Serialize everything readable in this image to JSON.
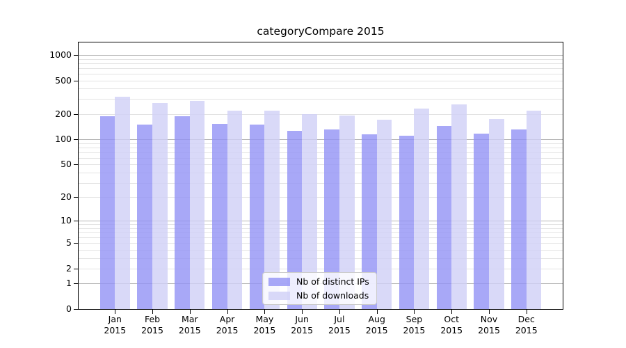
{
  "chart_data": {
    "type": "bar",
    "title": "categoryCompare 2015",
    "year": "2015",
    "categories": [
      "Jan",
      "Feb",
      "Mar",
      "Apr",
      "May",
      "Jun",
      "Jul",
      "Aug",
      "Sep",
      "Oct",
      "Nov",
      "Dec"
    ],
    "x_tick_labels": [
      "Jan 2015",
      "Feb 2015",
      "Mar 2015",
      "Apr 2015",
      "May 2015",
      "Jun 2015",
      "Jul 2015",
      "Aug 2015",
      "Sep 2015",
      "Oct 2015",
      "Nov 2015",
      "Dec 2015"
    ],
    "series": [
      {
        "name": "Nb of distinct IPs",
        "color": "rgba(146,146,245,0.8)",
        "values": [
          190,
          150,
          190,
          153,
          150,
          125,
          130,
          115,
          110,
          145,
          118,
          130
        ]
      },
      {
        "name": "Nb of downloads",
        "color": "rgba(207,207,246,0.8)",
        "values": [
          320,
          270,
          286,
          220,
          220,
          200,
          193,
          170,
          233,
          262,
          175,
          220
        ]
      }
    ],
    "xlabel": "",
    "ylabel": "",
    "yscale": "log1p",
    "yticks": [
      0,
      1,
      2,
      5,
      10,
      20,
      50,
      100,
      200,
      500,
      1000
    ],
    "ylim": [
      0,
      1400
    ],
    "grid": true,
    "legend_position": "lower center",
    "colors": {
      "grid_minor": "#e3e3e3",
      "grid_major": "#b5b5b5",
      "axis": "#000000",
      "background": "#ffffff"
    }
  }
}
